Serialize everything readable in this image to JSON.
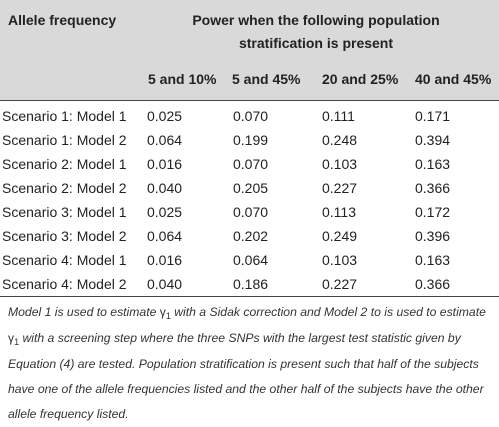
{
  "header": {
    "row_title": "Allele frequency",
    "group_line1": "Power when the following population",
    "group_line2": "stratification is present",
    "columns": [
      "5 and 10%",
      "5 and 45%",
      "20 and 25%",
      "40 and 45%"
    ]
  },
  "rows": [
    {
      "label": "Scenario 1: Model 1",
      "values": [
        "0.025",
        "0.070",
        "0.111",
        "0.171"
      ]
    },
    {
      "label": "Scenario 1: Model 2",
      "values": [
        "0.064",
        "0.199",
        "0.248",
        "0.394"
      ]
    },
    {
      "label": "Scenario 2: Model 1",
      "values": [
        "0.016",
        "0.070",
        "0.103",
        "0.163"
      ]
    },
    {
      "label": "Scenario 2: Model 2",
      "values": [
        "0.040",
        "0.205",
        "0.227",
        "0.366"
      ]
    },
    {
      "label": "Scenario 3: Model 1",
      "values": [
        "0.025",
        "0.070",
        "0.113",
        "0.172"
      ]
    },
    {
      "label": "Scenario 3: Model 2",
      "values": [
        "0.064",
        "0.202",
        "0.249",
        "0.396"
      ]
    },
    {
      "label": "Scenario 4: Model 1",
      "values": [
        "0.016",
        "0.064",
        "0.103",
        "0.163"
      ]
    },
    {
      "label": "Scenario 4: Model 2",
      "values": [
        "0.040",
        "0.186",
        "0.227",
        "0.366"
      ]
    }
  ],
  "footnote": {
    "part1": "Model 1 is used to estimate",
    "symbol": "γ",
    "subscript": "1",
    "part2": "with a Sidak correction and Model 2 to is used to estimate",
    "part3": "with a screening step where the three SNPs with the largest test statistic given by Equation (4) are tested. Population stratification is present such that half of the subjects have one of the allele frequencies listed and the other half of the subjects have the other allele frequency listed."
  }
}
